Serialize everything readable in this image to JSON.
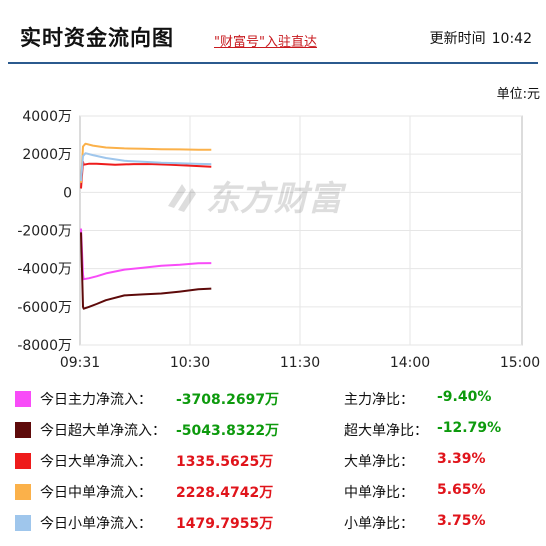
{
  "header": {
    "title": "实时资金流向图",
    "promo_link": "\"财富号\"入驻直达",
    "update_label": "更新时间",
    "update_time": "10:42"
  },
  "unit_label": "单位:元",
  "watermark": "东方财富",
  "chart_data": {
    "type": "line",
    "title": "",
    "xlabel": "",
    "ylabel": "",
    "ylim": [
      -8000,
      4000
    ],
    "yticks": [
      4000,
      2000,
      0,
      -2000,
      -4000,
      -6000,
      -8000
    ],
    "ytick_labels": [
      "4000万",
      "2000万",
      "0",
      "-2000万",
      "-4000万",
      "-6000万",
      "-8000万"
    ],
    "xticks": [
      "09:31",
      "10:30",
      "11:30",
      "14:00",
      "15:00"
    ],
    "grid": true,
    "series": [
      {
        "name": "今日主力净流入",
        "color": "#f84cf8",
        "x": [
          "09:30",
          "09:31",
          "09:33",
          "09:36",
          "09:40",
          "09:45",
          "09:55",
          "10:05",
          "10:15",
          "10:25",
          "10:35",
          "10:42"
        ],
        "y": [
          -1900,
          -4300,
          -4550,
          -4500,
          -4400,
          -4250,
          -4050,
          -3950,
          -3850,
          -3800,
          -3720,
          -3708
        ]
      },
      {
        "name": "今日超大单净流入",
        "color": "#5e0a0a",
        "x": [
          "09:30",
          "09:31",
          "09:33",
          "09:36",
          "09:40",
          "09:45",
          "09:55",
          "10:05",
          "10:15",
          "10:25",
          "10:35",
          "10:42"
        ],
        "y": [
          -2100,
          -6000,
          -6100,
          -6000,
          -5850,
          -5650,
          -5400,
          -5350,
          -5300,
          -5200,
          -5080,
          -5044
        ]
      },
      {
        "name": "今日大单净流入",
        "color": "#ee1b1b",
        "x": [
          "09:30",
          "09:31",
          "09:33",
          "09:36",
          "09:40",
          "09:50",
          "10:00",
          "10:10",
          "10:20",
          "10:30",
          "10:42"
        ],
        "y": [
          200,
          1600,
          1450,
          1500,
          1500,
          1450,
          1480,
          1480,
          1450,
          1400,
          1336
        ]
      },
      {
        "name": "今日中单净流入",
        "color": "#fbb14a",
        "x": [
          "09:30",
          "09:31",
          "09:34",
          "09:38",
          "09:45",
          "09:55",
          "10:05",
          "10:15",
          "10:25",
          "10:35",
          "10:42"
        ],
        "y": [
          500,
          2400,
          2550,
          2450,
          2350,
          2300,
          2280,
          2260,
          2250,
          2230,
          2228
        ]
      },
      {
        "name": "今日小单净流入",
        "color": "#9fc6ec",
        "x": [
          "09:30",
          "09:31",
          "09:34",
          "09:38",
          "09:45",
          "09:55",
          "10:05",
          "10:15",
          "10:25",
          "10:35",
          "10:42"
        ],
        "y": [
          600,
          1900,
          2050,
          1950,
          1800,
          1650,
          1600,
          1550,
          1520,
          1490,
          1480
        ]
      }
    ]
  },
  "legend": [
    {
      "color": "#f84cf8",
      "label": "今日主力净流入：",
      "value": "-3708.2697万",
      "ratio_label": "主力净比：",
      "ratio": "-9.40%",
      "sign": "neg"
    },
    {
      "color": "#5e0a0a",
      "label": "今日超大单净流入：",
      "value": "-5043.8322万",
      "ratio_label": "超大单净比：",
      "ratio": "-12.79%",
      "sign": "neg"
    },
    {
      "color": "#ee1b1b",
      "label": "今日大单净流入：",
      "value": "1335.5625万",
      "ratio_label": "大单净比：",
      "ratio": "3.39%",
      "sign": "pos"
    },
    {
      "color": "#fbb14a",
      "label": "今日中单净流入：",
      "value": "2228.4742万",
      "ratio_label": "中单净比：",
      "ratio": "5.65%",
      "sign": "pos"
    },
    {
      "color": "#9fc6ec",
      "label": "今日小单净流入：",
      "value": "1479.7955万",
      "ratio_label": "小单净比：",
      "ratio": "3.75%",
      "sign": "pos"
    }
  ]
}
